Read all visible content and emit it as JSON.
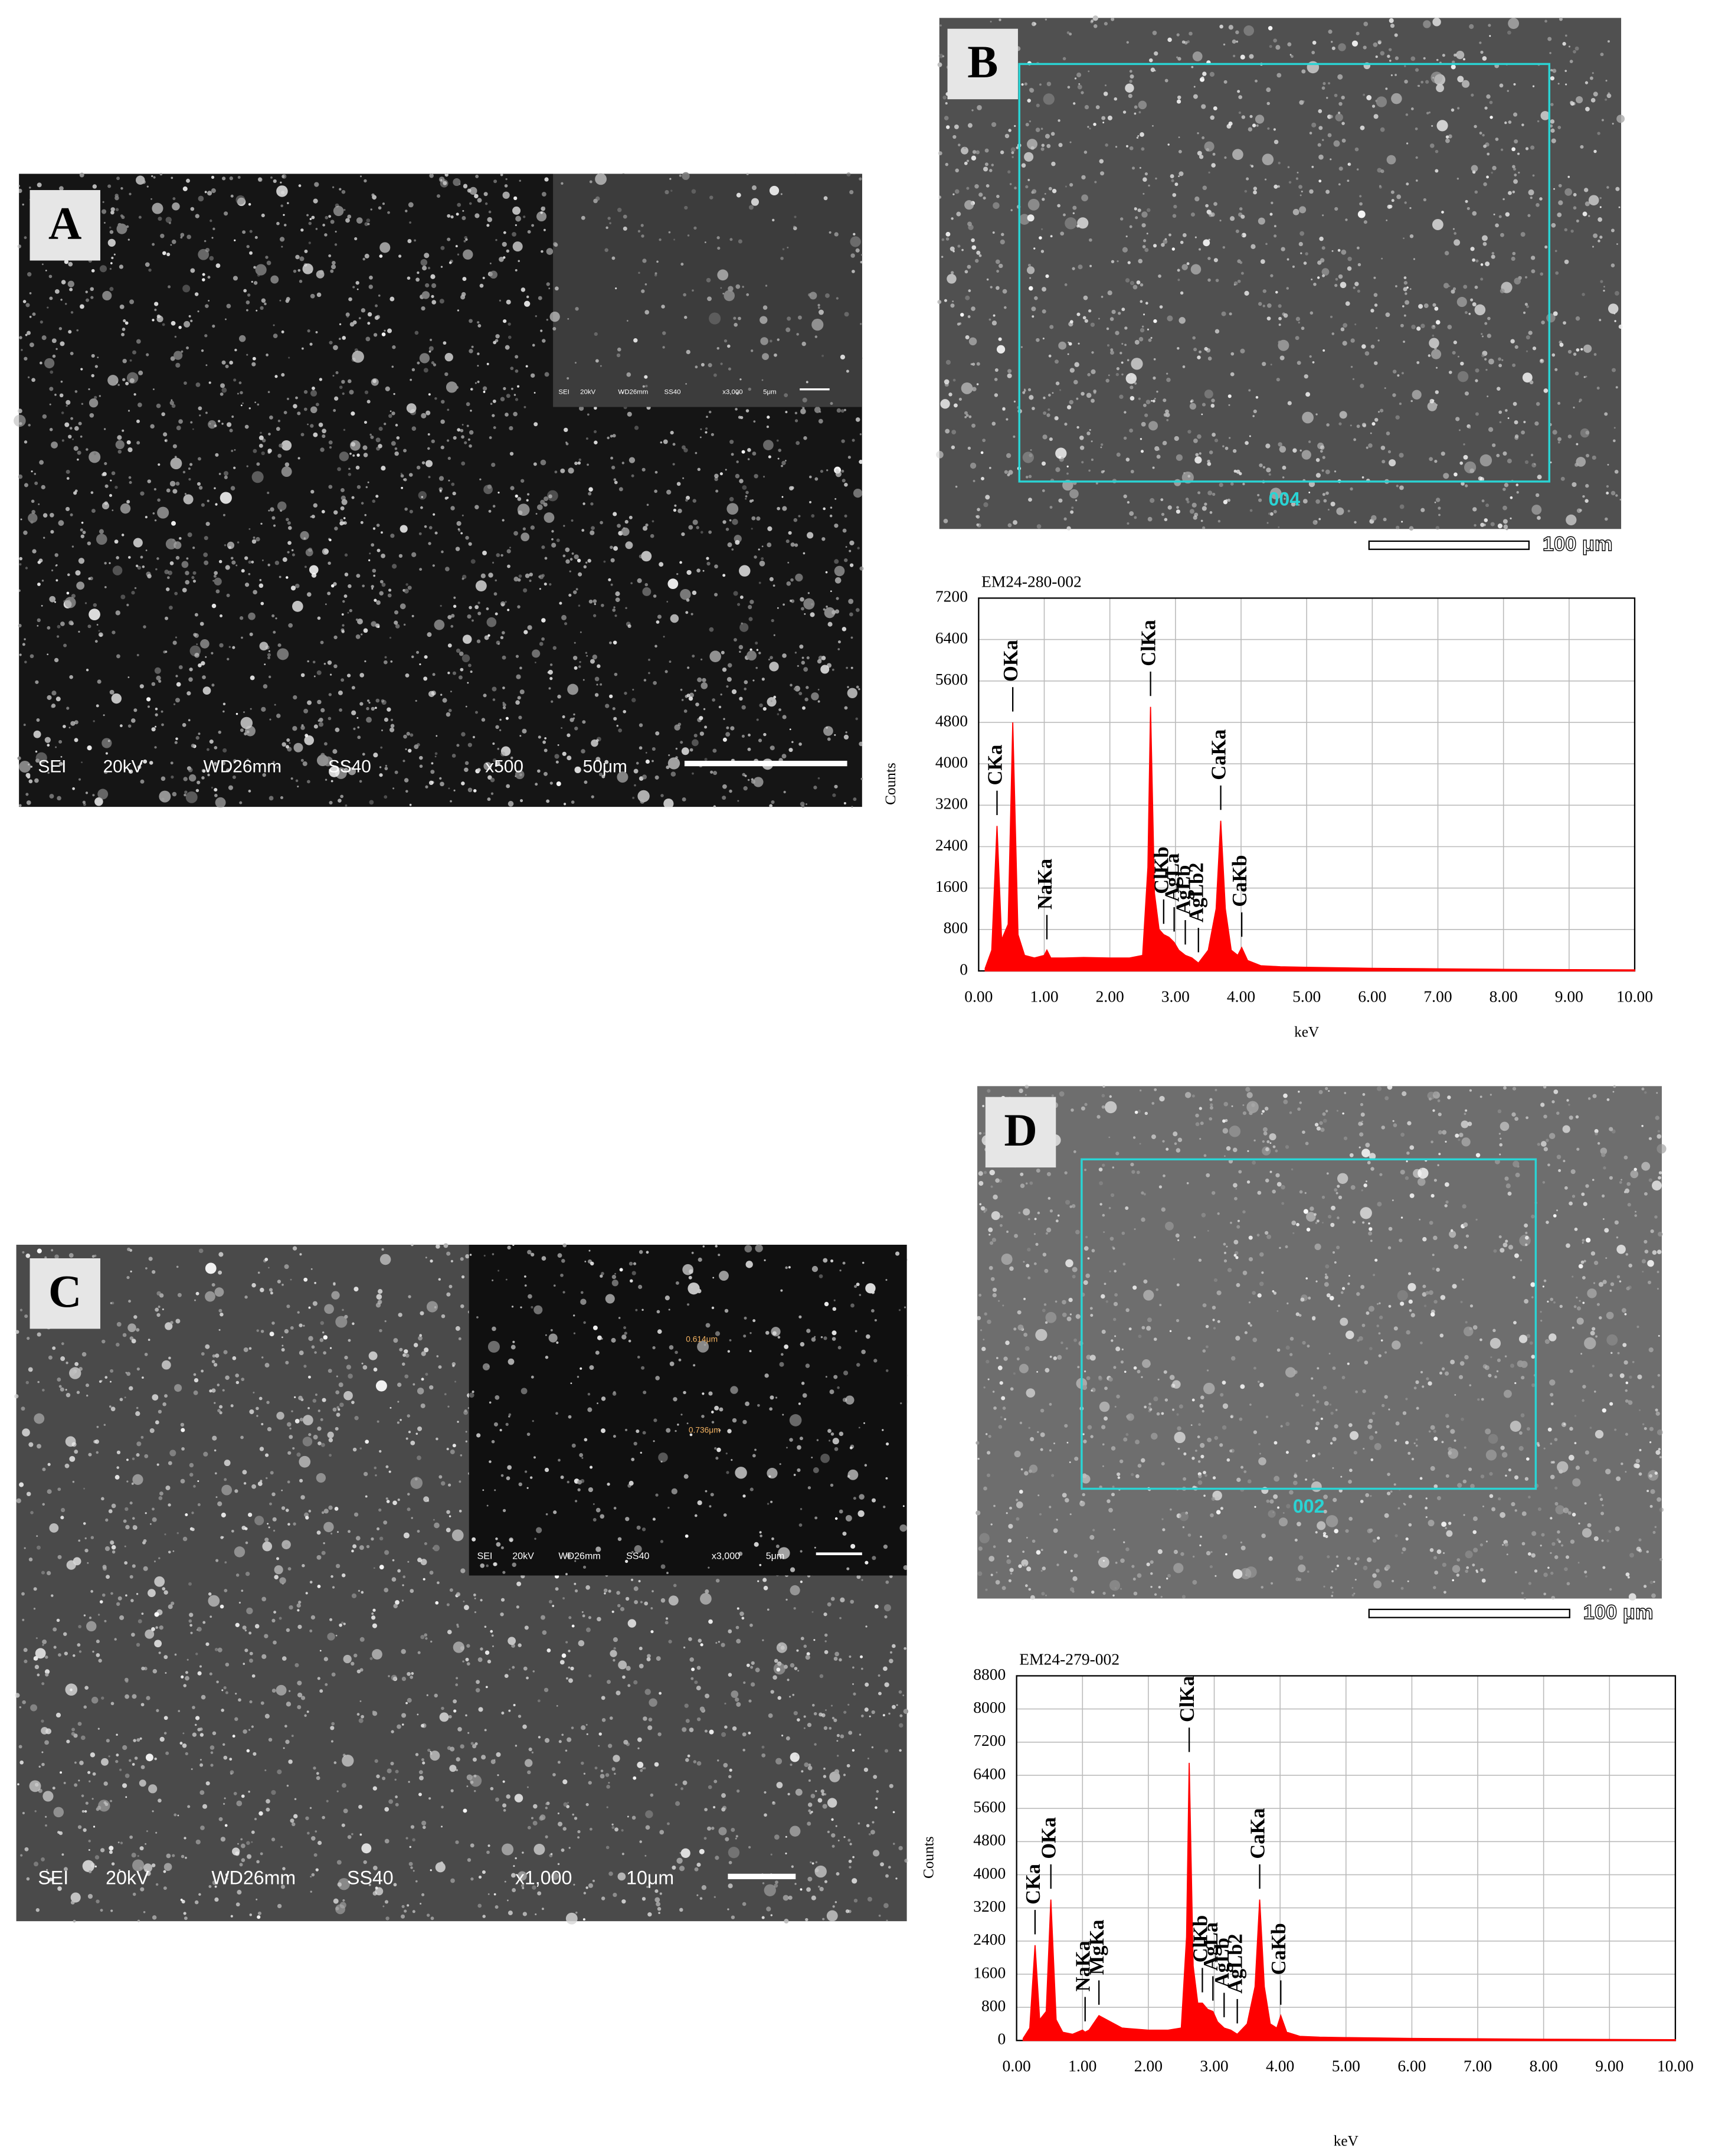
{
  "panels": {
    "a": {
      "label": "A",
      "info": [
        "SEI",
        "20kV",
        "WD26mm",
        "SS40",
        "x500",
        "50μm"
      ],
      "inset_info": [
        "SEI",
        "20kV",
        "WD26mm",
        "SS40",
        "x3,000",
        "5μm"
      ]
    },
    "b": {
      "label": "B",
      "region": "004",
      "scale": "100 μm"
    },
    "c": {
      "label": "C",
      "info": [
        "SEI",
        "20kV",
        "WD26mm",
        "SS40",
        "x1,000",
        "10μm"
      ],
      "inset_info": [
        "SEI",
        "20kV",
        "WD26mm",
        "SS40",
        "x3,000",
        "5μm"
      ],
      "inset_measures": [
        "0.614μm",
        "0.736μm"
      ]
    },
    "d": {
      "label": "D",
      "region": "002",
      "scale": "100 μm"
    }
  },
  "chart_data": [
    {
      "type": "area",
      "title": "EM24-280-002",
      "x_label": "keV",
      "y_label": "Counts",
      "color": "#ff0000",
      "grid": true,
      "x": [
        0.1,
        0.2,
        0.28,
        0.35,
        0.45,
        0.52,
        0.6,
        0.7,
        0.85,
        1.0,
        1.04,
        1.1,
        1.3,
        1.6,
        2.0,
        2.3,
        2.5,
        2.58,
        2.62,
        2.68,
        2.75,
        2.82,
        2.9,
        2.98,
        3.05,
        3.15,
        3.25,
        3.35,
        3.5,
        3.62,
        3.69,
        3.76,
        3.85,
        3.95,
        4.01,
        4.1,
        4.3,
        4.6,
        5.0,
        5.5,
        6.0,
        7.0,
        8.0,
        9.0,
        10.0
      ],
      "values": [
        50,
        400,
        2800,
        600,
        900,
        4800,
        700,
        300,
        250,
        300,
        400,
        250,
        250,
        260,
        250,
        250,
        300,
        2000,
        5100,
        1500,
        800,
        700,
        650,
        550,
        400,
        300,
        250,
        150,
        400,
        1200,
        2900,
        1200,
        400,
        300,
        450,
        200,
        100,
        80,
        70,
        60,
        50,
        40,
        30,
        25,
        20
      ],
      "xlim": [
        0,
        10
      ],
      "xticks": [
        {
          "value": 0,
          "label": "0.00"
        },
        {
          "value": 1,
          "label": "1.00"
        },
        {
          "value": 2,
          "label": "2.00"
        },
        {
          "value": 3,
          "label": "3.00"
        },
        {
          "value": 4,
          "label": "4.00"
        },
        {
          "value": 5,
          "label": "5.00"
        },
        {
          "value": 6,
          "label": "6.00"
        },
        {
          "value": 7,
          "label": "7.00"
        },
        {
          "value": 8,
          "label": "8.00"
        },
        {
          "value": 9,
          "label": "9.00"
        },
        {
          "value": 10,
          "label": "10.00"
        }
      ],
      "ylim": [
        0,
        7200
      ],
      "yticks": [
        0,
        800,
        1600,
        2400,
        3200,
        4000,
        4800,
        5600,
        6400,
        7200
      ],
      "annotations": [
        {
          "text": "CKa",
          "x": 0.28
        },
        {
          "text": "OKa",
          "x": 0.52
        },
        {
          "text": "NaKa",
          "x": 1.04
        },
        {
          "text": "ClKa",
          "x": 2.62
        },
        {
          "text": "ClKb",
          "x": 2.82
        },
        {
          "text": "AgLa",
          "x": 2.98
        },
        {
          "text": "AgLb",
          "x": 3.15
        },
        {
          "text": "AgLb2",
          "x": 3.35
        },
        {
          "text": "CaKa",
          "x": 3.69
        },
        {
          "text": "CaKb",
          "x": 4.01
        }
      ]
    },
    {
      "type": "area",
      "title": "EM24-279-002",
      "x_label": "keV",
      "y_label": "Counts",
      "color": "#ff0000",
      "grid": true,
      "x": [
        0.1,
        0.2,
        0.28,
        0.35,
        0.45,
        0.52,
        0.6,
        0.7,
        0.85,
        1.0,
        1.04,
        1.1,
        1.25,
        1.6,
        2.0,
        2.3,
        2.5,
        2.58,
        2.62,
        2.68,
        2.75,
        2.82,
        2.9,
        2.98,
        3.05,
        3.15,
        3.25,
        3.35,
        3.5,
        3.62,
        3.69,
        3.76,
        3.85,
        3.95,
        4.01,
        4.1,
        4.3,
        4.6,
        5.0,
        5.5,
        6.0,
        7.0,
        8.0,
        9.0,
        10.0
      ],
      "values": [
        50,
        300,
        2300,
        500,
        700,
        3400,
        500,
        200,
        150,
        250,
        200,
        250,
        600,
        300,
        250,
        250,
        300,
        2500,
        6700,
        1800,
        900,
        900,
        750,
        700,
        450,
        300,
        250,
        150,
        400,
        1300,
        3400,
        1300,
        400,
        300,
        600,
        200,
        100,
        80,
        70,
        60,
        50,
        40,
        30,
        25,
        20
      ],
      "xlim": [
        0,
        10
      ],
      "xticks": [
        {
          "value": 0,
          "label": "0.00"
        },
        {
          "value": 1,
          "label": "1.00"
        },
        {
          "value": 2,
          "label": "2.00"
        },
        {
          "value": 3,
          "label": "3.00"
        },
        {
          "value": 4,
          "label": "4.00"
        },
        {
          "value": 5,
          "label": "5.00"
        },
        {
          "value": 6,
          "label": "6.00"
        },
        {
          "value": 7,
          "label": "7.00"
        },
        {
          "value": 8,
          "label": "8.00"
        },
        {
          "value": 9,
          "label": "9.00"
        },
        {
          "value": 10,
          "label": "10.00"
        }
      ],
      "ylim": [
        0,
        8800
      ],
      "yticks": [
        0,
        800,
        1600,
        2400,
        3200,
        4000,
        4800,
        5600,
        6400,
        7200,
        8000,
        8800
      ],
      "annotations": [
        {
          "text": "CKa",
          "x": 0.28
        },
        {
          "text": "OKa",
          "x": 0.52
        },
        {
          "text": "NaKa",
          "x": 1.04
        },
        {
          "text": "MgKa",
          "x": 1.25
        },
        {
          "text": "ClKa",
          "x": 2.62
        },
        {
          "text": "ClKb",
          "x": 2.82
        },
        {
          "text": "AgLa",
          "x": 2.98
        },
        {
          "text": "AgLb",
          "x": 3.15
        },
        {
          "text": "AgLb2",
          "x": 3.35
        },
        {
          "text": "CaKa",
          "x": 3.69
        },
        {
          "text": "CaKb",
          "x": 4.01
        }
      ]
    }
  ]
}
